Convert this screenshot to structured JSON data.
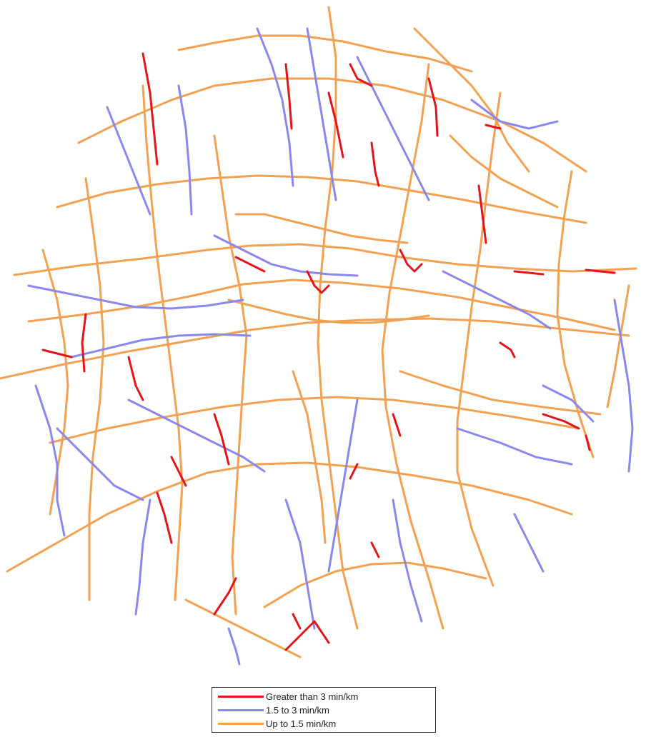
{
  "colors": {
    "high": "#e3151b",
    "medium": "#8a88ec",
    "low": "#f2a152"
  },
  "legend": {
    "items": [
      {
        "key": "high",
        "label": "Greater than 3 min/km"
      },
      {
        "key": "medium",
        "label": "1.5 to 3 min/km"
      },
      {
        "key": "low",
        "label": "Up to 1.5 min/km"
      }
    ]
  }
}
